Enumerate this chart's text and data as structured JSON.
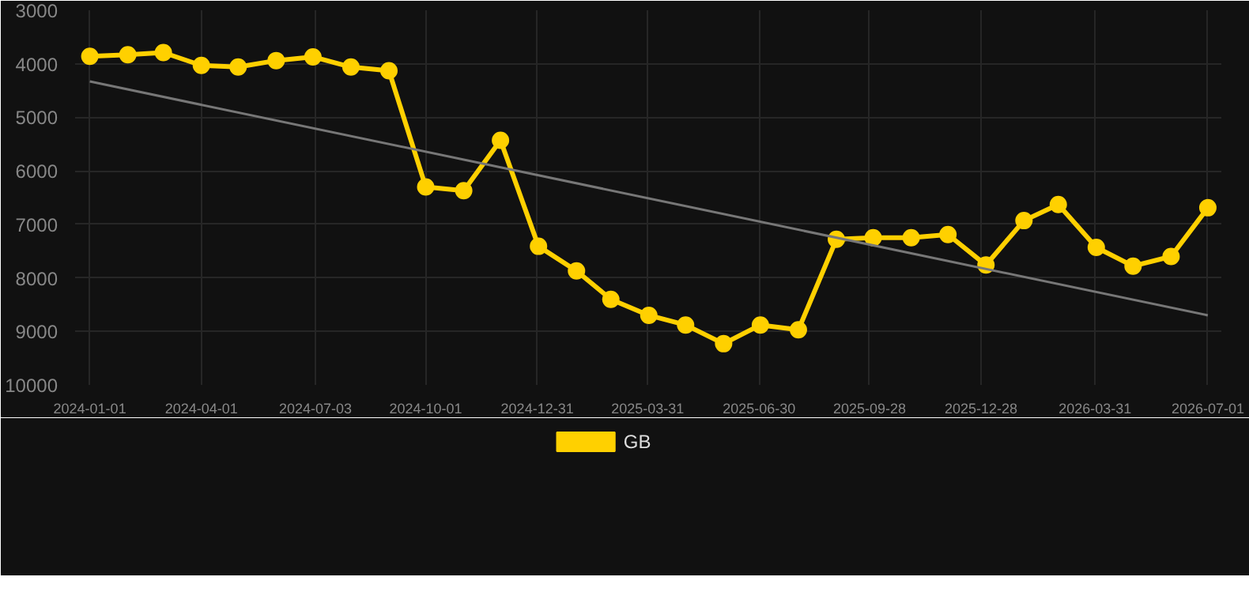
{
  "chart_data": {
    "type": "line",
    "x": [
      "2024-01-01",
      "2024-02-01",
      "2024-03-01",
      "2024-04-01",
      "2024-05-01",
      "2024-06-01",
      "2024-07-01",
      "2024-08-01",
      "2024-09-01",
      "2024-10-01",
      "2024-11-01",
      "2024-12-01",
      "2025-01-01",
      "2025-02-01",
      "2025-03-01",
      "2025-04-01",
      "2025-05-01",
      "2025-06-01",
      "2025-07-01",
      "2025-08-01",
      "2025-09-01",
      "2025-10-01",
      "2025-11-01",
      "2025-12-01",
      "2026-01-01",
      "2026-02-01",
      "2026-03-01",
      "2026-04-01",
      "2026-05-01",
      "2026-06-01",
      "2026-07-01"
    ],
    "series": [
      {
        "name": "GB",
        "color": "#ffd000",
        "marker": "circle",
        "values": [
          3860,
          3830,
          3790,
          4030,
          4060,
          3940,
          3870,
          4060,
          4130,
          6300,
          6370,
          5430,
          7410,
          7870,
          8400,
          8700,
          8880,
          9230,
          8880,
          8970,
          7280,
          7250,
          7250,
          7190,
          7760,
          6930,
          6630,
          7430,
          7780,
          7600,
          6690
        ]
      },
      {
        "type": "line",
        "color": "#777777",
        "marker": "none",
        "x": [
          "2024-01-01",
          "2026-07-01"
        ],
        "values": [
          4330,
          8700
        ]
      }
    ],
    "ylim": [
      10000,
      3000
    ],
    "yticks": [
      3000,
      4000,
      5000,
      6000,
      7000,
      8000,
      9000,
      10000
    ],
    "xlim": [
      "2023-12-20",
      "2026-07-12"
    ],
    "xticks": [
      "2024-01-01",
      "2024-04-01",
      "2024-07-03",
      "2024-10-01",
      "2024-12-31",
      "2025-03-31",
      "2025-06-30",
      "2025-09-28",
      "2025-12-28",
      "2026-03-31",
      "2026-07-01"
    ],
    "grid": true,
    "legend": "bottom"
  }
}
